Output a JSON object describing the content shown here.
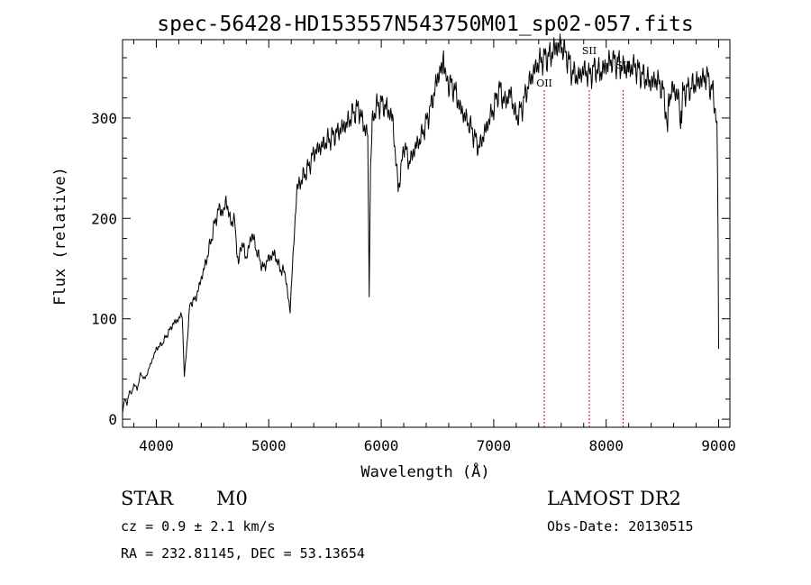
{
  "chart_data": {
    "type": "line",
    "title": "spec-56428-HD153557N543750M01_sp02-057.fits",
    "xlabel": "Wavelength (Å)",
    "ylabel": "Flux (relative)",
    "xlim": [
      3700,
      9100
    ],
    "ylim": [
      -8,
      378
    ],
    "xticks": [
      4000,
      5000,
      6000,
      7000,
      8000,
      9000
    ],
    "yticks": [
      0,
      100,
      200,
      300
    ],
    "xtick_labels": [
      "4000",
      "5000",
      "6000",
      "7000",
      "8000",
      "9000"
    ],
    "ytick_labels": [
      "0",
      "100",
      "200",
      "300"
    ],
    "grid": false,
    "series": [
      {
        "line_color": "#000000",
        "x": [
          3700,
          3720,
          3740,
          3760,
          3780,
          3800,
          3830,
          3860,
          3900,
          3950,
          4000,
          4050,
          4100,
          4150,
          4200,
          4230,
          4250,
          4300,
          4350,
          4400,
          4450,
          4500,
          4530,
          4560,
          4600,
          4620,
          4650,
          4700,
          4730,
          4750,
          4780,
          4800,
          4850,
          4900,
          4950,
          5000,
          5050,
          5100,
          5150,
          5170,
          5190,
          5210,
          5250,
          5300,
          5350,
          5400,
          5450,
          5500,
          5550,
          5600,
          5650,
          5700,
          5750,
          5800,
          5850,
          5880,
          5893,
          5905,
          5920,
          5950,
          6000,
          6050,
          6100,
          6150,
          6180,
          6200,
          6250,
          6300,
          6350,
          6400,
          6450,
          6500,
          6530,
          6563,
          6600,
          6650,
          6700,
          6750,
          6800,
          6850,
          6870,
          6900,
          6950,
          7000,
          7050,
          7100,
          7150,
          7200,
          7250,
          7300,
          7350,
          7400,
          7450,
          7500,
          7550,
          7600,
          7650,
          7700,
          7750,
          7800,
          7850,
          7900,
          7950,
          8000,
          8050,
          8100,
          8150,
          8200,
          8250,
          8300,
          8350,
          8400,
          8450,
          8500,
          8530,
          8542,
          8555,
          8600,
          8640,
          8662,
          8680,
          8750,
          8800,
          8850,
          8900,
          8930,
          8950,
          8970,
          8985,
          8990,
          8995,
          9000
        ],
        "y": [
          8,
          20,
          15,
          28,
          25,
          35,
          30,
          45,
          40,
          55,
          70,
          75,
          85,
          95,
          100,
          105,
          42,
          115,
          120,
          140,
          160,
          185,
          200,
          210,
          205,
          220,
          200,
          195,
          150,
          175,
          170,
          160,
          185,
          165,
          150,
          160,
          165,
          150,
          145,
          120,
          110,
          150,
          230,
          240,
          250,
          265,
          270,
          275,
          280,
          285,
          290,
          295,
          305,
          310,
          290,
          285,
          120,
          250,
          295,
          310,
          315,
          310,
          300,
          230,
          250,
          275,
          255,
          270,
          280,
          295,
          315,
          340,
          350,
          355,
          335,
          330,
          310,
          300,
          290,
          275,
          270,
          280,
          295,
          310,
          330,
          315,
          325,
          300,
          310,
          330,
          345,
          355,
          360,
          362,
          370,
          372,
          362,
          345,
          340,
          348,
          342,
          350,
          345,
          352,
          358,
          355,
          350,
          348,
          352,
          345,
          340,
          335,
          338,
          330,
          310,
          280,
          320,
          330,
          320,
          290,
          325,
          330,
          335,
          338,
          342,
          330,
          325,
          310,
          285,
          240,
          180,
          70
        ]
      }
    ],
    "lines": [
      {
        "label": "OII",
        "x": 7450,
        "color": "#cc0000"
      },
      {
        "label": "SII",
        "x": 7850,
        "color": "#cc0000"
      },
      {
        "label": "SII",
        "x": 8150,
        "color": "#cc0000"
      }
    ]
  },
  "info": {
    "object_type": "STAR",
    "subclass": "M0",
    "survey": "LAMOST DR2",
    "cz": "cz = 0.9 ± 2.1 km/s",
    "obs_date": "Obs-Date: 20130515",
    "coords": "RA = 232.81145, DEC =  53.13654"
  }
}
